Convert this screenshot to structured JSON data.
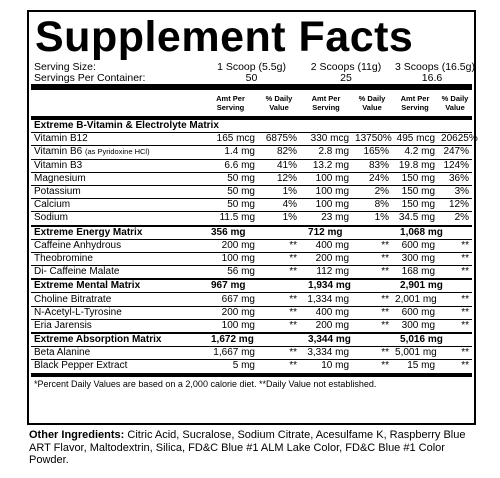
{
  "title": "Supplement Facts",
  "serving_size": {
    "label": "Serving Size:",
    "values": [
      "1 Scoop (5.5g)",
      "2 Scoops (11g)",
      "3 Scoops (16.5g)"
    ]
  },
  "servings_per_container": {
    "label": "Servings Per Container:",
    "values": [
      "50",
      "25",
      "16.6"
    ]
  },
  "column_headers": [
    "Amt Per Serving",
    "% Daily Value",
    "Amt Per Serving",
    "% Daily Value",
    "Amt Per Serving",
    "% Daily Value"
  ],
  "sections": [
    {
      "title": "Extreme B-Vitamin & Electrolyte Matrix",
      "amounts": [],
      "rows": [
        {
          "name": "Vitamin B12",
          "cells": [
            "165 mcg",
            "6875%",
            "330 mcg",
            "13750%",
            "495 mcg",
            "20625%"
          ]
        },
        {
          "name": "Vitamin B6",
          "note": "(as Pyridoxine HCl)",
          "cells": [
            "1.4 mg",
            "82%",
            "2.8 mg",
            "165%",
            "4.2 mg",
            "247%"
          ]
        },
        {
          "name": "Vitamin B3",
          "cells": [
            "6.6 mg",
            "41%",
            "13.2 mg",
            "83%",
            "19.8 mg",
            "124%"
          ]
        },
        {
          "name": "Magnesium",
          "cells": [
            "50 mg",
            "12%",
            "100 mg",
            "24%",
            "150 mg",
            "36%"
          ]
        },
        {
          "name": "Potassium",
          "cells": [
            "50 mg",
            "1%",
            "100 mg",
            "2%",
            "150 mg",
            "3%"
          ]
        },
        {
          "name": "Calcium",
          "cells": [
            "50 mg",
            "4%",
            "100 mg",
            "8%",
            "150 mg",
            "12%"
          ]
        },
        {
          "name": "Sodium",
          "cells": [
            "11.5 mg",
            "1%",
            "23 mg",
            "1%",
            "34.5 mg",
            "2%"
          ]
        }
      ]
    },
    {
      "title": "Extreme Energy Matrix",
      "amounts": [
        "356 mg",
        "712 mg",
        "1,068 mg"
      ],
      "rows": [
        {
          "name": "Caffeine Anhydrous",
          "cells": [
            "200 mg",
            "**",
            "400 mg",
            "**",
            "600 mg",
            "**"
          ]
        },
        {
          "name": "Theobromine",
          "cells": [
            "100 mg",
            "**",
            "200 mg",
            "**",
            "300 mg",
            "**"
          ]
        },
        {
          "name": "Di- Caffeine Malate",
          "cells": [
            "56 mg",
            "**",
            "112 mg",
            "**",
            "168 mg",
            "**"
          ]
        }
      ]
    },
    {
      "title": "Extreme Mental Matrix",
      "amounts": [
        "967 mg",
        "1,934 mg",
        "2,901 mg"
      ],
      "rows": [
        {
          "name": "Choline Bitratrate",
          "cells": [
            "667 mg",
            "**",
            "1,334 mg",
            "**",
            "2,001 mg",
            "**"
          ]
        },
        {
          "name": "N-Acetyl-L-Tyrosine",
          "cells": [
            "200 mg",
            "**",
            "400 mg",
            "**",
            "600 mg",
            "**"
          ]
        },
        {
          "name": "Eria Jarensis",
          "cells": [
            "100 mg",
            "**",
            "200 mg",
            "**",
            "300 mg",
            "**"
          ]
        }
      ]
    },
    {
      "title": "Extreme Absorption Matrix",
      "amounts": [
        "1,672 mg",
        "3,344 mg",
        "5,016 mg"
      ],
      "rows": [
        {
          "name": "Beta Alanine",
          "cells": [
            "1,667 mg",
            "**",
            "3,334 mg",
            "**",
            "5,001 mg",
            "**"
          ]
        },
        {
          "name": "Black Pepper Extract",
          "cells": [
            "5 mg",
            "**",
            "10 mg",
            "**",
            "15 mg",
            "**"
          ]
        }
      ]
    }
  ],
  "footnote": "*Percent Daily Values are based on a 2,000 calorie diet. **Daily Value not established.",
  "other_ingredients": {
    "label": "Other Ingredients:",
    "text": "Citric Acid, Sucralose, Sodium Citrate, Acesulfame K, Raspberry Blue ART Flavor, Maltodextrin, Silica, FD&C Blue #1 ALM Lake Color, FD&C Blue #1 Color Powder."
  }
}
